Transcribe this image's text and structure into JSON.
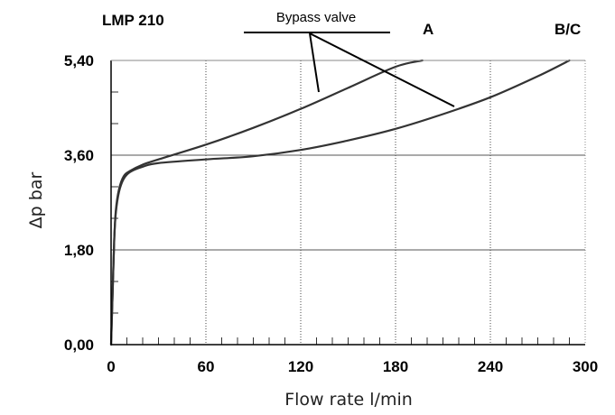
{
  "chart_data": {
    "type": "line",
    "title": "LMP 210",
    "xlabel": "Flow rate l/min",
    "ylabel": "Δp bar",
    "xlim": [
      0,
      300
    ],
    "ylim": [
      0,
      5.4
    ],
    "x_ticks": [
      "0",
      "60",
      "120",
      "180",
      "240",
      "300"
    ],
    "y_ticks": [
      "0,00",
      "1,80",
      "3,60",
      "5,40"
    ],
    "grid": true,
    "series": [
      {
        "name": "A",
        "x": [
          0,
          1,
          2,
          3,
          5,
          8,
          12,
          20,
          30,
          60,
          90,
          120,
          150,
          180,
          197
        ],
        "y": [
          0,
          1.0,
          2.0,
          2.55,
          2.95,
          3.2,
          3.3,
          3.42,
          3.52,
          3.8,
          4.12,
          4.48,
          4.88,
          5.28,
          5.4
        ]
      },
      {
        "name": "B/C",
        "x": [
          0,
          1,
          2,
          3,
          5,
          8,
          12,
          20,
          30,
          60,
          90,
          120,
          150,
          180,
          210,
          240,
          270,
          290
        ],
        "y": [
          0,
          1.0,
          2.0,
          2.5,
          2.9,
          3.15,
          3.28,
          3.38,
          3.45,
          3.52,
          3.58,
          3.7,
          3.88,
          4.1,
          4.38,
          4.7,
          5.1,
          5.4
        ]
      }
    ],
    "annotations": {
      "bypass_label": "Bypass valve",
      "curve_label_a": "A",
      "curve_label_bc": "B/C"
    }
  }
}
